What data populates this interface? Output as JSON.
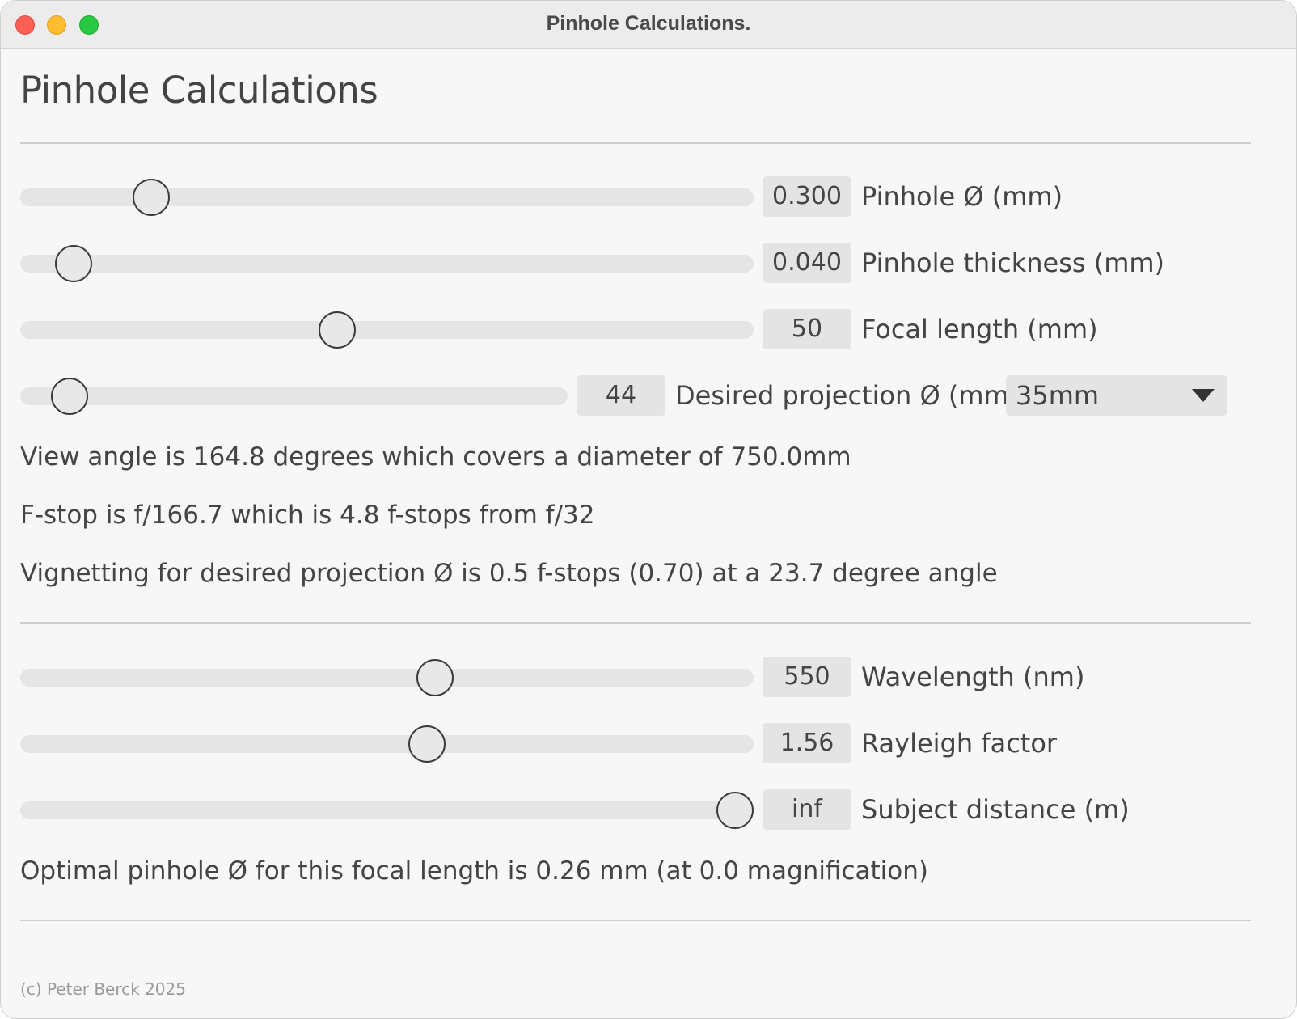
{
  "window": {
    "title": "Pinhole Calculations."
  },
  "app": {
    "title": "Pinhole Calculations"
  },
  "sliders_top": [
    {
      "value": "0.300",
      "label": "Pinhole Ø (mm)",
      "fraction": 0.162
    },
    {
      "value": "0.040",
      "label": "Pinhole thickness (mm)",
      "fraction": 0.05
    },
    {
      "value": "50",
      "label": "Focal length (mm)",
      "fraction": 0.428
    }
  ],
  "projection": {
    "value": "44",
    "label": "Desired projection Ø (mm)",
    "fraction": 0.06,
    "select_value": "35mm"
  },
  "info": {
    "view_angle": "View angle is 164.8 degrees which covers a diameter of 750.0mm",
    "fstop": "F-stop is f/166.7 which is 4.8 f-stops from f/32",
    "vignetting": "Vignetting for desired projection Ø is 0.5 f-stops (0.70) at a 23.7 degree angle",
    "optimal": "Optimal pinhole Ø for this focal length is 0.26 mm (at 0.0 magnification)"
  },
  "sliders_bottom": [
    {
      "value": "550",
      "label": "Wavelength (nm)",
      "fraction": 0.569
    },
    {
      "value": "1.56",
      "label": "Rayleigh factor",
      "fraction": 0.557
    },
    {
      "value": "inf",
      "label": "Subject distance (m)",
      "fraction": 1.0
    }
  ],
  "footer": {
    "copyright": "(c) Peter Berck 2025"
  }
}
